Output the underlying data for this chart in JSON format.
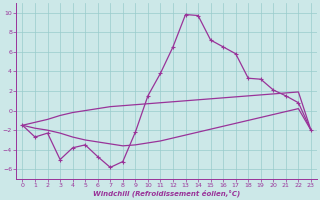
{
  "xlabel": "Windchill (Refroidissement éolien,°C)",
  "x": [
    0,
    1,
    2,
    3,
    4,
    5,
    6,
    7,
    8,
    9,
    10,
    11,
    12,
    13,
    14,
    15,
    16,
    17,
    18,
    19,
    20,
    21,
    22,
    23
  ],
  "line_main": [
    -1.5,
    -2.7,
    -2.3,
    -5.0,
    -3.8,
    -3.5,
    -4.7,
    -5.8,
    -5.2,
    -2.2,
    1.5,
    3.8,
    6.5,
    9.8,
    9.7,
    7.2,
    6.5,
    5.8,
    3.3,
    3.2,
    2.1,
    1.5,
    0.8,
    -2.0
  ],
  "line_upper": [
    -1.5,
    -1.2,
    -0.9,
    -0.5,
    -0.2,
    0.0,
    0.2,
    0.4,
    0.5,
    0.6,
    0.7,
    0.8,
    0.9,
    1.0,
    1.1,
    1.2,
    1.3,
    1.4,
    1.5,
    1.6,
    1.7,
    1.8,
    1.9,
    -2.0
  ],
  "line_lower": [
    -1.5,
    -1.8,
    -2.0,
    -2.3,
    -2.7,
    -3.0,
    -3.2,
    -3.4,
    -3.6,
    -3.5,
    -3.3,
    -3.1,
    -2.8,
    -2.5,
    -2.2,
    -1.9,
    -1.6,
    -1.3,
    -1.0,
    -0.7,
    -0.4,
    -0.1,
    0.2,
    -2.0
  ],
  "line_color": "#993399",
  "bg_color": "#cce8e8",
  "grid_color": "#99cccc",
  "ylim": [
    -7,
    11
  ],
  "yticks": [
    -6,
    -4,
    -2,
    0,
    2,
    4,
    6,
    8,
    10
  ],
  "xticks": [
    0,
    1,
    2,
    3,
    4,
    5,
    6,
    7,
    8,
    9,
    10,
    11,
    12,
    13,
    14,
    15,
    16,
    17,
    18,
    19,
    20,
    21,
    22,
    23
  ]
}
